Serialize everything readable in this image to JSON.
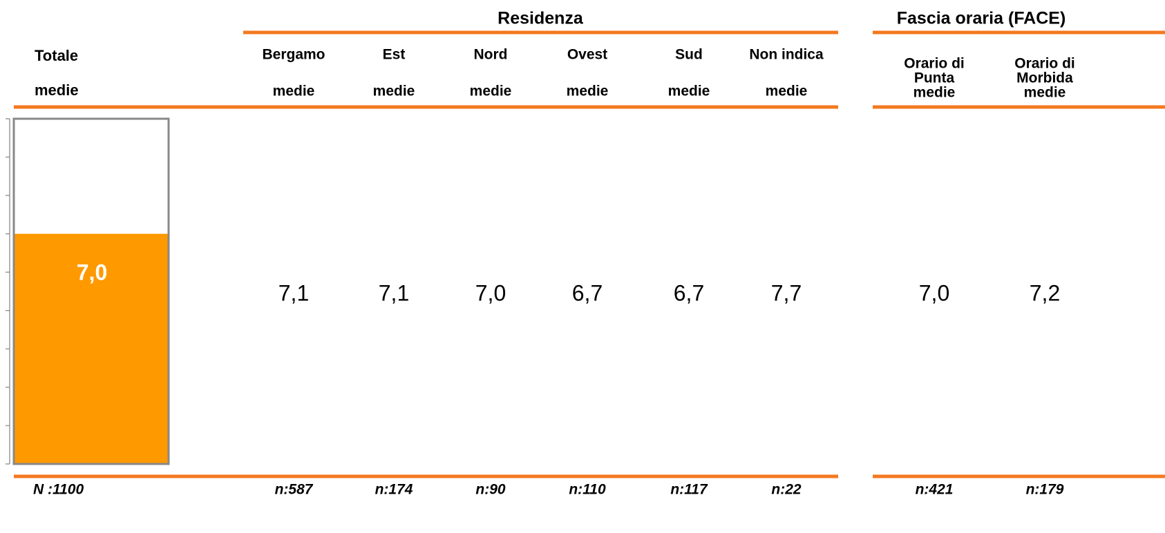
{
  "chart_data": {
    "type": "bar",
    "title": "Totale",
    "subtitle": "medie",
    "values": [
      7
    ],
    "value_labels": [
      "7,0"
    ],
    "color": "#ff9900",
    "ylim": [
      1,
      10
    ],
    "yticks": [
      1,
      2,
      3,
      4,
      5,
      6,
      7,
      8,
      9,
      10
    ],
    "n_label": "N :1100"
  },
  "table": {
    "groups": [
      {
        "title": "Residenza",
        "columns": [
          {
            "name": [
              "Bergamo"
            ],
            "sub": "medie",
            "value": "7,1",
            "n": "n:587"
          },
          {
            "name": [
              "Est"
            ],
            "sub": "medie",
            "value": "7,1",
            "n": "n:174"
          },
          {
            "name": [
              "Nord"
            ],
            "sub": "medie",
            "value": "7,0",
            "n": "n:90"
          },
          {
            "name": [
              "Ovest"
            ],
            "sub": "medie",
            "value": "6,7",
            "n": "n:110"
          },
          {
            "name": [
              "Sud"
            ],
            "sub": "medie",
            "value": "6,7",
            "n": "n:117"
          },
          {
            "name": [
              "Non indica"
            ],
            "sub": "medie",
            "value": "7,7",
            "n": "n:22"
          }
        ]
      },
      {
        "title": "Fascia oraria (FACE)",
        "columns": [
          {
            "name": [
              "Orario di",
              "Punta"
            ],
            "sub": "medie",
            "value": "7,0",
            "n": "n:421"
          },
          {
            "name": [
              "Orario di",
              "Morbida"
            ],
            "sub": "medie",
            "value": "7,2",
            "n": "n:179"
          }
        ]
      }
    ]
  }
}
